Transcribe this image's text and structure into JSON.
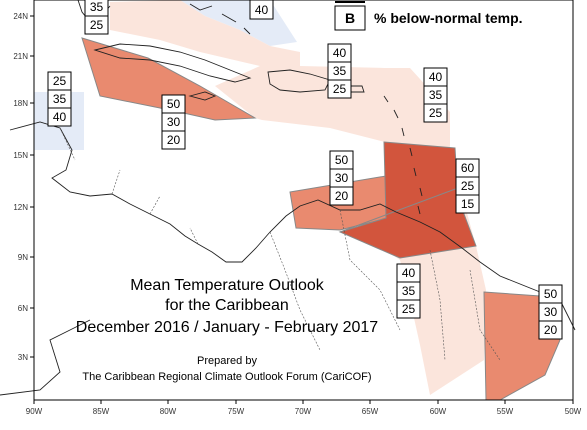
{
  "title": {
    "line1": "Mean Temperature Outlook",
    "line2": "for the Caribbean",
    "line3": "December 2016 / January - February 2017"
  },
  "credit": {
    "line1": "Prepared by",
    "line2": "The Caribbean Regional Climate Outlook Forum (CariCOF)"
  },
  "legend": {
    "symbol": "B",
    "label": "% below-normal temp."
  },
  "axes": {
    "x_ticks": [
      "90W",
      "85W",
      "80W",
      "75W",
      "70W",
      "65W",
      "60W",
      "55W",
      "50W"
    ],
    "y_ticks": [
      "24N",
      "21N",
      "18N",
      "15N",
      "12N",
      "9N",
      "6N",
      "3N"
    ]
  },
  "colors": {
    "cat_40": "#fbe5dc",
    "cat_50": "#e98a6f",
    "cat_60": "#d2553d",
    "below_normal_blue": "#e4ebf7",
    "box_border": "#000000"
  },
  "probability_boxes": {
    "bahamas": [
      "35",
      "25"
    ],
    "cuba_top": [
      "40"
    ],
    "yucatan": [
      "25",
      "35",
      "40"
    ],
    "jamaica": [
      "50",
      "30",
      "20"
    ],
    "hispaniola": [
      "40",
      "35",
      "25"
    ],
    "leewards": [
      "40",
      "35",
      "25"
    ],
    "abc_islands": [
      "50",
      "30",
      "20"
    ],
    "windwards": [
      "60",
      "25",
      "15"
    ],
    "guyana": [
      "40",
      "35",
      "25"
    ],
    "french_guiana": [
      "50",
      "30",
      "20"
    ]
  }
}
